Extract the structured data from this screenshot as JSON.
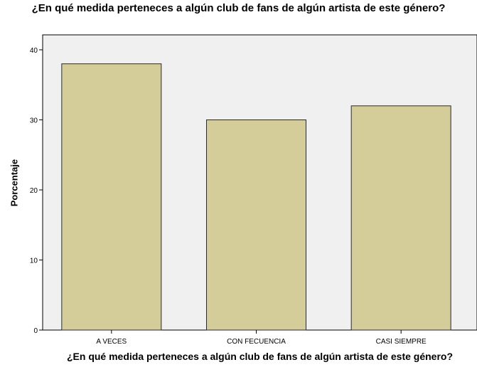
{
  "chart_data": {
    "type": "bar",
    "title": "¿En qué medida perteneces a algún club de fans de algún artista de este género?",
    "xlabel": "¿En qué medida perteneces a algún club de fans de algún artista de este género?",
    "ylabel": "Porcentaje",
    "categories": [
      "A VECES",
      "CON FECUENCIA",
      "CASI SIEMPRE"
    ],
    "values": [
      38,
      30,
      32
    ],
    "ylim": [
      0,
      40
    ],
    "yticks": [
      0,
      10,
      20,
      30,
      40
    ],
    "grid": false,
    "colors": {
      "bar_fill": "#d4cd99",
      "bar_stroke": "#2a2a2a",
      "plot_background": "#f0f0f0"
    }
  }
}
